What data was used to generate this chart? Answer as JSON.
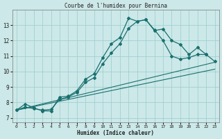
{
  "title": "Courbe de l'humidex pour Bernina",
  "xlabel": "Humidex (Indice chaleur)",
  "xlim": [
    -0.5,
    23.5
  ],
  "ylim": [
    6.7,
    14.0
  ],
  "xticks": [
    0,
    1,
    2,
    3,
    4,
    5,
    6,
    7,
    8,
    9,
    10,
    11,
    12,
    13,
    14,
    15,
    16,
    17,
    18,
    19,
    20,
    21,
    22,
    23
  ],
  "yticks": [
    7,
    8,
    9,
    10,
    11,
    12,
    13
  ],
  "background_color": "#cce8e8",
  "grid_color": "#99cccc",
  "line_color": "#1a7070",
  "curve1_x": [
    0,
    1,
    2,
    3,
    4,
    5,
    6,
    7,
    8,
    9,
    10,
    11,
    12,
    13,
    14,
    15,
    16,
    17,
    18,
    19,
    20,
    21,
    22
  ],
  "curve1_y": [
    7.5,
    7.9,
    7.65,
    7.45,
    7.45,
    8.35,
    8.4,
    8.75,
    9.5,
    9.85,
    10.9,
    11.8,
    12.2,
    13.45,
    13.25,
    13.35,
    12.65,
    12.75,
    12.0,
    11.75,
    11.1,
    11.55,
    11.1
  ],
  "curve2_x": [
    0,
    1,
    2,
    3,
    4,
    5,
    6,
    7,
    8,
    9,
    10,
    11,
    12,
    13,
    14,
    15,
    16,
    17,
    18,
    19,
    20,
    21,
    22,
    23
  ],
  "curve2_y": [
    7.5,
    7.7,
    7.6,
    7.5,
    7.55,
    8.2,
    8.35,
    8.65,
    9.3,
    9.6,
    10.5,
    11.2,
    11.8,
    12.8,
    13.25,
    13.35,
    12.7,
    12.0,
    11.0,
    10.8,
    10.9,
    11.1,
    11.1,
    10.65
  ],
  "line1_x": [
    0,
    23
  ],
  "line1_y": [
    7.5,
    10.6
  ],
  "line2_x": [
    0,
    23
  ],
  "line2_y": [
    7.5,
    10.15
  ]
}
